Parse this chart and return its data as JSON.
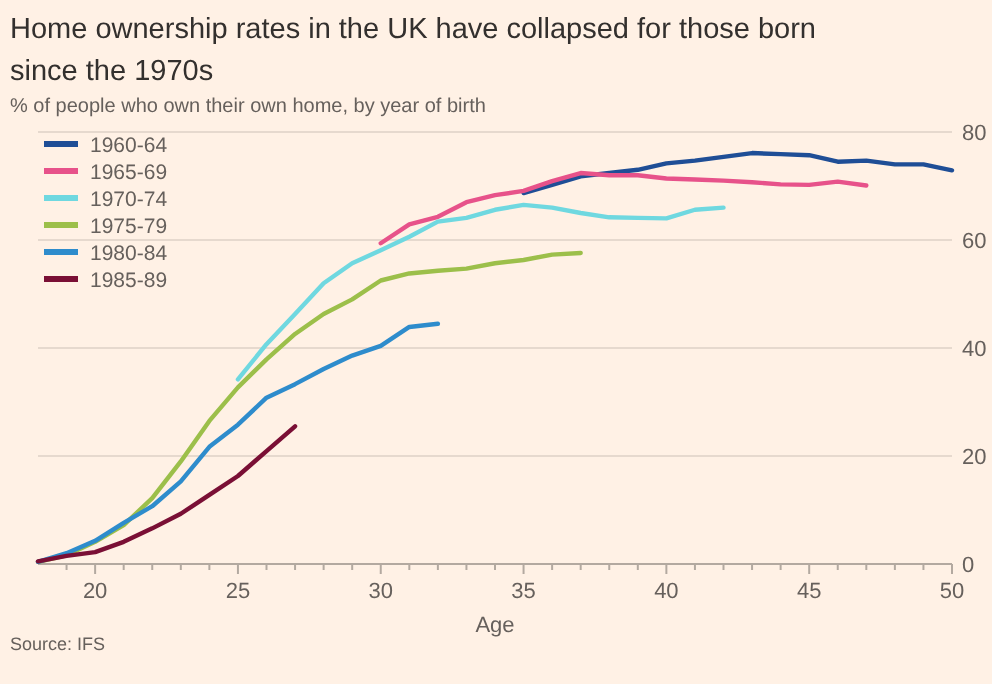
{
  "chart_data": {
    "type": "line",
    "title": "Home ownership rates in the UK have collapsed for those born since the 1970s",
    "subtitle": "% of people who own their own home, by year of birth",
    "xlabel": "Age",
    "annotations": [
      "Source: IFS"
    ],
    "xlim": [
      18,
      50
    ],
    "xticks": [
      {
        "value": 19,
        "label": null
      },
      20,
      {
        "value": 21,
        "label": null
      },
      {
        "value": 22,
        "label": null
      },
      {
        "value": 23,
        "label": null
      },
      {
        "value": 24,
        "label": null
      },
      25,
      {
        "value": 26,
        "label": null
      },
      {
        "value": 27,
        "label": null
      },
      {
        "value": 28,
        "label": null
      },
      {
        "value": 29,
        "label": null
      },
      30,
      {
        "value": 31,
        "label": null
      },
      {
        "value": 32,
        "label": null
      },
      {
        "value": 33,
        "label": null
      },
      {
        "value": 34,
        "label": null
      },
      35,
      {
        "value": 36,
        "label": null
      },
      {
        "value": 37,
        "label": null
      },
      {
        "value": 38,
        "label": null
      },
      {
        "value": 39,
        "label": null
      },
      40,
      {
        "value": 41,
        "label": null
      },
      {
        "value": 42,
        "label": null
      },
      {
        "value": 43,
        "label": null
      },
      {
        "value": 44,
        "label": null
      },
      45,
      {
        "value": 46,
        "label": null
      },
      {
        "value": 47,
        "label": null
      },
      {
        "value": 48,
        "label": null
      },
      {
        "value": 49,
        "label": null
      },
      50
    ],
    "ylim": [
      0,
      80
    ],
    "yticks": [
      0,
      20,
      40,
      60,
      80
    ],
    "grid": "y",
    "legend": "top left",
    "marker": "none",
    "line_style": "solid",
    "series": [
      {
        "name": "1960-64",
        "color": "#1f4e96",
        "x": [
          35,
          36,
          37,
          38,
          39,
          40,
          41,
          42,
          43,
          44,
          45,
          46,
          47,
          48,
          49,
          50
        ],
        "values": [
          68.7,
          70.2,
          71.8,
          72.4,
          73,
          74.2,
          74.7,
          75.4,
          76.1,
          75.9,
          75.7,
          74.5,
          74.7,
          74,
          74,
          72.9
        ]
      },
      {
        "name": "1965-69",
        "color": "#e7528a",
        "x": [
          30,
          31,
          32,
          33,
          34,
          35,
          36,
          37,
          38,
          39,
          40,
          41,
          42,
          43,
          44,
          45,
          46,
          47
        ],
        "values": [
          59.4,
          62.9,
          64.3,
          67,
          68.3,
          69.1,
          70.9,
          72.4,
          72,
          72,
          71.4,
          71.2,
          71,
          70.7,
          70.3,
          70.2,
          70.8,
          70.1
        ]
      },
      {
        "name": "1970-74",
        "color": "#6fd8e0",
        "x": [
          25,
          26,
          27,
          28,
          29,
          30,
          31,
          32,
          33,
          34,
          35,
          36,
          37,
          38,
          39,
          40,
          41,
          42
        ],
        "values": [
          34.2,
          40.7,
          46.3,
          52,
          55.7,
          58.1,
          60.6,
          63.4,
          64.1,
          65.6,
          66.5,
          66,
          65,
          64.2,
          64.1,
          64,
          65.6,
          66
        ]
      },
      {
        "name": "1975-79",
        "color": "#9cbf4a",
        "x": [
          18,
          19,
          20,
          21,
          22,
          23,
          24,
          25,
          26,
          27,
          28,
          29,
          30,
          31,
          32,
          33,
          34,
          35,
          36,
          37
        ],
        "values": [
          0.4,
          1.6,
          4.1,
          7.2,
          12.2,
          19,
          26.5,
          32.7,
          37.9,
          42.6,
          46.3,
          49,
          52.5,
          53.8,
          54.3,
          54.7,
          55.7,
          56.3,
          57.3,
          57.6
        ]
      },
      {
        "name": "1980-84",
        "color": "#2e8ccc",
        "x": [
          18,
          19,
          20,
          21,
          22,
          23,
          24,
          25,
          26,
          27,
          28,
          29,
          30,
          31,
          32
        ],
        "values": [
          0.4,
          2,
          4.3,
          7.6,
          10.7,
          15.3,
          21.7,
          25.8,
          30.8,
          33.3,
          36.1,
          38.6,
          40.4,
          43.9,
          44.5
        ]
      },
      {
        "name": "1985-89",
        "color": "#7a0f35",
        "x": [
          18,
          19,
          20,
          21,
          22,
          23,
          24,
          25,
          26,
          27
        ],
        "values": [
          0.5,
          1.5,
          2.2,
          4.1,
          6.6,
          9.3,
          12.8,
          16.3,
          20.9,
          25.5
        ]
      }
    ]
  }
}
